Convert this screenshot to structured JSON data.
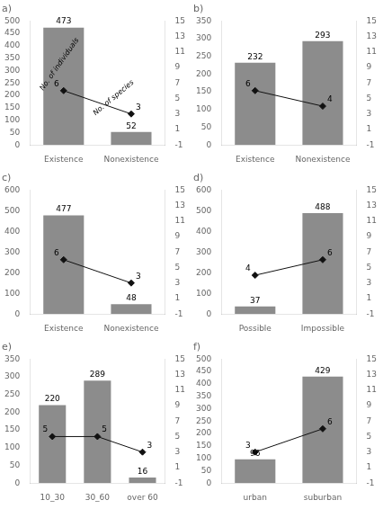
{
  "chart_data": [
    {
      "type": "bar",
      "title": "a)",
      "categories": [
        "Existence",
        "Nonexistence"
      ],
      "series": [
        {
          "type": "bar",
          "color": "#8c8c8c",
          "values": [
            473,
            52
          ]
        },
        {
          "type": "line",
          "axis": "y2",
          "color": "#111111",
          "marker": "diamond",
          "values": [
            6,
            3
          ]
        }
      ],
      "ylim": [
        0,
        500
      ],
      "yticks": [
        0,
        50,
        100,
        150,
        200,
        250,
        300,
        350,
        400,
        450,
        500
      ],
      "y2lim": [
        -1,
        15
      ],
      "y2ticks": [
        -1,
        1,
        3,
        5,
        7,
        9,
        11,
        13,
        15
      ],
      "annotations": [
        "No. of individuals",
        "No. of species"
      ],
      "grid": false,
      "data_labels": true
    },
    {
      "type": "bar",
      "title": "b)",
      "categories": [
        "Existence",
        "Nonexistence"
      ],
      "series": [
        {
          "type": "bar",
          "color": "#8c8c8c",
          "values": [
            232,
            293
          ]
        },
        {
          "type": "line",
          "axis": "y2",
          "color": "#111111",
          "marker": "diamond",
          "values": [
            6,
            4
          ]
        }
      ],
      "ylim": [
        0,
        350
      ],
      "yticks": [
        0,
        50,
        100,
        150,
        200,
        250,
        300,
        350
      ],
      "y2lim": [
        -1,
        15
      ],
      "y2ticks": [
        -1,
        1,
        3,
        5,
        7,
        9,
        11,
        13,
        15
      ],
      "grid": false,
      "data_labels": true
    },
    {
      "type": "bar",
      "title": "c)",
      "categories": [
        "Existence",
        "Nonexistence"
      ],
      "series": [
        {
          "type": "bar",
          "color": "#8c8c8c",
          "values": [
            477,
            48
          ]
        },
        {
          "type": "line",
          "axis": "y2",
          "color": "#111111",
          "marker": "diamond",
          "values": [
            6,
            3
          ]
        }
      ],
      "ylim": [
        0,
        600
      ],
      "yticks": [
        0,
        100,
        200,
        300,
        400,
        500,
        600
      ],
      "y2lim": [
        -1,
        15
      ],
      "y2ticks": [
        -1,
        1,
        3,
        5,
        7,
        9,
        11,
        13,
        15
      ],
      "grid": false,
      "data_labels": true
    },
    {
      "type": "bar",
      "title": "d)",
      "categories": [
        "Possible",
        "Impossible"
      ],
      "series": [
        {
          "type": "bar",
          "color": "#8c8c8c",
          "values": [
            37,
            488
          ]
        },
        {
          "type": "line",
          "axis": "y2",
          "color": "#111111",
          "marker": "diamond",
          "values": [
            4,
            6
          ]
        }
      ],
      "ylim": [
        0,
        600
      ],
      "yticks": [
        0,
        100,
        200,
        300,
        400,
        500,
        600
      ],
      "y2lim": [
        -1,
        15
      ],
      "y2ticks": [
        -1,
        1,
        3,
        5,
        7,
        9,
        11,
        13,
        15
      ],
      "grid": false,
      "data_labels": true
    },
    {
      "type": "bar",
      "title": "e)",
      "categories": [
        "10_30",
        "30_60",
        "over 60"
      ],
      "series": [
        {
          "type": "bar",
          "color": "#8c8c8c",
          "values": [
            220,
            289,
            16
          ]
        },
        {
          "type": "line",
          "axis": "y2",
          "color": "#111111",
          "marker": "diamond",
          "values": [
            5,
            5,
            3
          ]
        }
      ],
      "ylim": [
        0,
        350
      ],
      "yticks": [
        0,
        50,
        100,
        150,
        200,
        250,
        300,
        350
      ],
      "y2lim": [
        -1,
        15
      ],
      "y2ticks": [
        -1,
        1,
        3,
        5,
        7,
        9,
        11,
        13,
        15
      ],
      "grid": false,
      "data_labels": true
    },
    {
      "type": "bar",
      "title": "f)",
      "categories": [
        "urban",
        "suburban"
      ],
      "series": [
        {
          "type": "bar",
          "color": "#8c8c8c",
          "values": [
            96,
            429
          ]
        },
        {
          "type": "line",
          "axis": "y2",
          "color": "#111111",
          "marker": "diamond",
          "values": [
            3,
            6
          ]
        }
      ],
      "ylim": [
        0,
        500
      ],
      "yticks": [
        0,
        50,
        100,
        150,
        200,
        250,
        300,
        350,
        400,
        450,
        500
      ],
      "y2lim": [
        -1,
        15
      ],
      "y2ticks": [
        -1,
        1,
        3,
        5,
        7,
        9,
        11,
        13,
        15
      ],
      "grid": false,
      "data_labels": true
    }
  ]
}
